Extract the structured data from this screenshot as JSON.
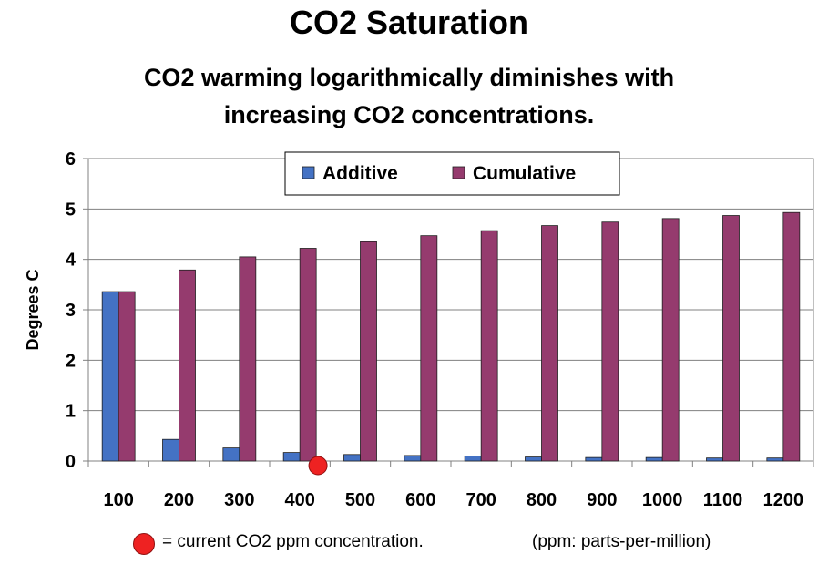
{
  "title": "CO2 Saturation",
  "subtitle_lines": [
    "CO2 warming logarithmically diminishes with",
    "increasing CO2 concentrations."
  ],
  "chart_data": {
    "type": "bar",
    "categories": [
      "100",
      "200",
      "300",
      "400",
      "500",
      "600",
      "700",
      "800",
      "900",
      "1000",
      "1100",
      "1200"
    ],
    "series": [
      {
        "name": "Additive",
        "color": "#4472c4",
        "values": [
          3.36,
          0.43,
          0.26,
          0.17,
          0.13,
          0.11,
          0.1,
          0.08,
          0.07,
          0.07,
          0.06,
          0.06
        ]
      },
      {
        "name": "Cumulative",
        "color": "#953b6e",
        "values": [
          3.36,
          3.79,
          4.05,
          4.22,
          4.35,
          4.47,
          4.57,
          4.67,
          4.74,
          4.81,
          4.87,
          4.93
        ]
      }
    ],
    "ylabel": "Degrees C",
    "xlabel": "",
    "ylim": [
      0,
      6
    ],
    "yticks": [
      0,
      1,
      2,
      3,
      4,
      5,
      6
    ],
    "grid": true,
    "legend_position": "top-center",
    "marker": {
      "label": "current CO2 ppm concentration",
      "x_ppm": 430,
      "y": 0,
      "color": "#ee2222"
    }
  },
  "footnote": {
    "marker_text": "= current CO2 ppm concentration.",
    "units_text": "(ppm: parts-per-million)"
  }
}
